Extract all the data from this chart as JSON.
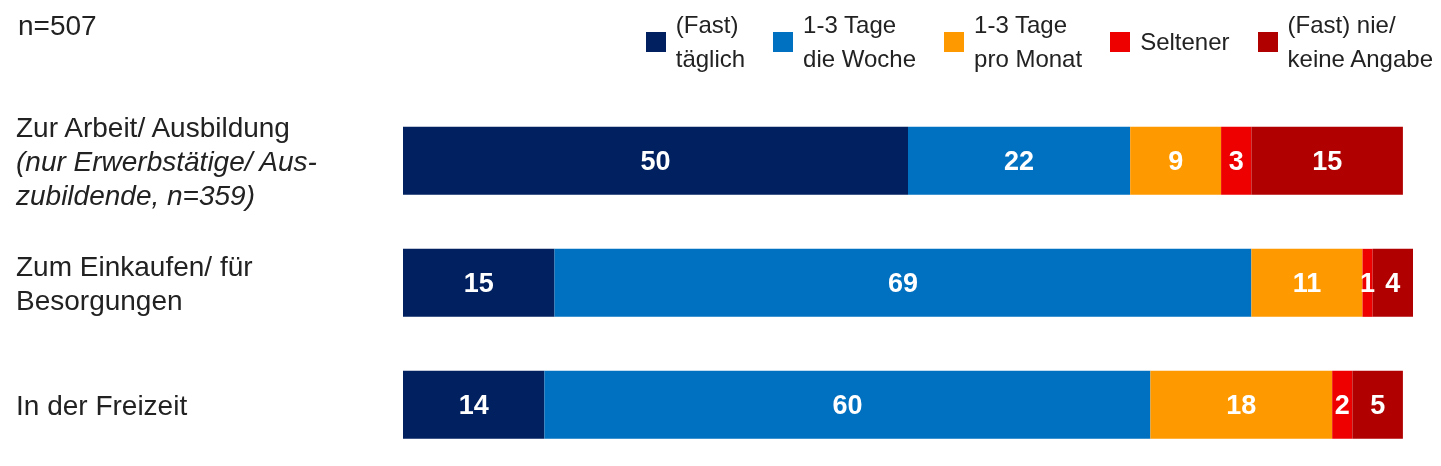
{
  "chart_data": {
    "type": "bar",
    "orientation": "horizontal",
    "stacked": true,
    "data_labels": true,
    "legend": "top right",
    "tick_labels": "y",
    "annotations": [
      "n=507"
    ],
    "categories": [
      "Zur Arbeit/ Ausbildung\n(nur Erwerbstätige/ Aus-\nzubildende, n=359)",
      "Zum Einkaufen/ für\nBesorgungen",
      "In der Freizeit"
    ],
    "xlim": [
      0,
      100
    ],
    "series": [
      {
        "name": "(Fast)\ntäglich",
        "color": "#002060",
        "values": [
          50,
          15,
          14
        ]
      },
      {
        "name": "1-3 Tage\ndie Woche",
        "color": "#0070c0",
        "values": [
          22,
          69,
          60
        ]
      },
      {
        "name": "1-3 Tage\npro Monat",
        "color": "#ff9900",
        "values": [
          9,
          11,
          18
        ]
      },
      {
        "name": "Seltener",
        "color": "#ee0000",
        "values": [
          3,
          1,
          2
        ]
      },
      {
        "name": "(Fast) nie/\nkeine Angabe",
        "color": "#b00000",
        "values": [
          15,
          4,
          5
        ]
      }
    ]
  }
}
